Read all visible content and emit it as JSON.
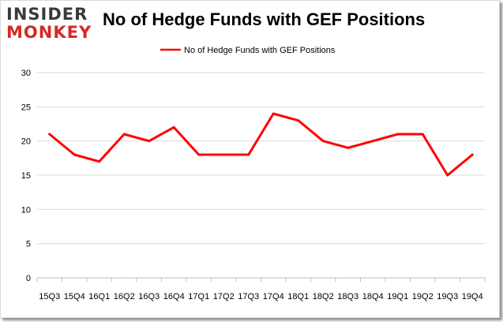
{
  "logo": {
    "line1": "INSIDER",
    "line2": "MONKEY"
  },
  "chart_data": {
    "type": "line",
    "title": "No of Hedge Funds with GEF Positions",
    "categories": [
      "15Q3",
      "15Q4",
      "16Q1",
      "16Q2",
      "16Q3",
      "16Q4",
      "17Q1",
      "17Q2",
      "17Q3",
      "17Q4",
      "18Q1",
      "18Q2",
      "18Q3",
      "18Q4",
      "19Q1",
      "19Q2",
      "19Q3",
      "19Q4"
    ],
    "series": [
      {
        "name": "No of Hedge Funds with GEF Positions",
        "values": [
          21,
          18,
          17,
          21,
          20,
          22,
          18,
          18,
          18,
          24,
          23,
          20,
          19,
          20,
          21,
          21,
          15,
          18
        ]
      }
    ],
    "ylim": [
      0,
      30
    ],
    "yticks": [
      0,
      5,
      10,
      15,
      20,
      25,
      30
    ],
    "xlabel": "",
    "ylabel": "",
    "grid": true,
    "legend_position": "top-center",
    "colors": {
      "series": "#ff0000",
      "grid": "#d9d9d9",
      "axis": "#bfbfbf"
    }
  }
}
